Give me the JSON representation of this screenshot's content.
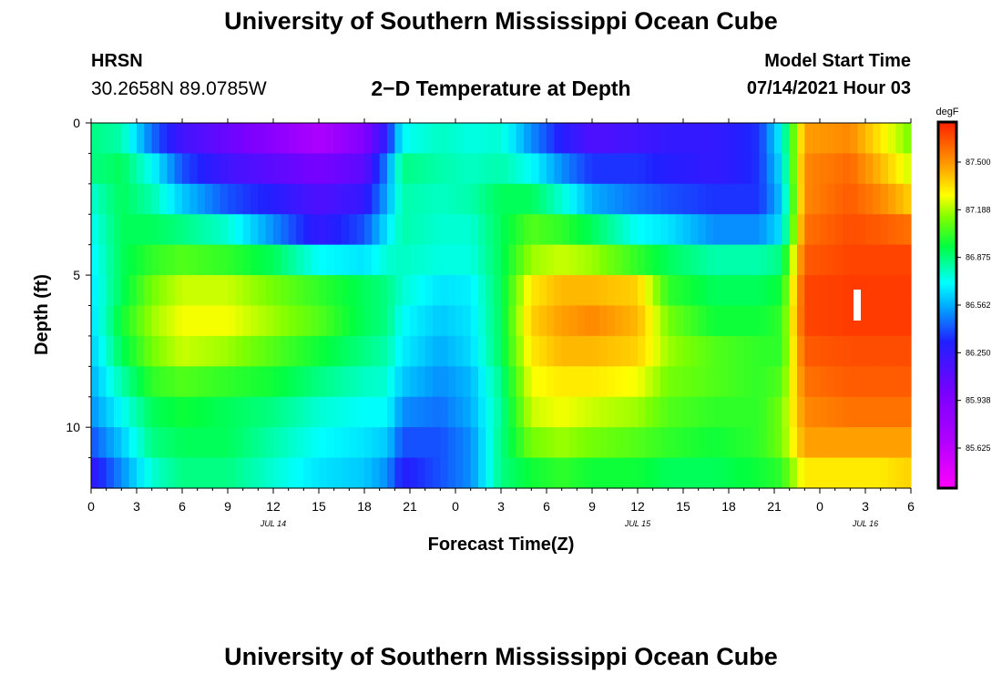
{
  "page": {
    "title": "University of Southern Mississippi Ocean Cube",
    "footer_title": "University of Southern Mississippi Ocean Cube",
    "station": "HRSN",
    "coordinates": "30.2658N  89.0785W",
    "subtitle": "2−D Temperature at Depth",
    "model_start_label": "Model Start Time",
    "model_start_value": "07/14/2021 Hour 03"
  },
  "chart_data": {
    "type": "heatmap",
    "title": "2−D Temperature at Depth",
    "xlabel": "Forecast Time(Z)",
    "ylabel": "Depth (ft)",
    "x_hours_start": 0,
    "x_hours_end": 54,
    "ylim": [
      0,
      12
    ],
    "x_ticks": [
      {
        "h": 0,
        "label": "0"
      },
      {
        "h": 3,
        "label": "3"
      },
      {
        "h": 6,
        "label": "6"
      },
      {
        "h": 9,
        "label": "9"
      },
      {
        "h": 12,
        "label": "12"
      },
      {
        "h": 15,
        "label": "15"
      },
      {
        "h": 18,
        "label": "18"
      },
      {
        "h": 21,
        "label": "21"
      },
      {
        "h": 24,
        "label": "0"
      },
      {
        "h": 27,
        "label": "3"
      },
      {
        "h": 30,
        "label": "6"
      },
      {
        "h": 33,
        "label": "9"
      },
      {
        "h": 36,
        "label": "12"
      },
      {
        "h": 39,
        "label": "15"
      },
      {
        "h": 42,
        "label": "18"
      },
      {
        "h": 45,
        "label": "21"
      },
      {
        "h": 48,
        "label": "0"
      },
      {
        "h": 51,
        "label": "3"
      },
      {
        "h": 54,
        "label": "6"
      }
    ],
    "date_labels": [
      {
        "h": 12,
        "label": "JUL 14"
      },
      {
        "h": 36,
        "label": "JUL 15"
      },
      {
        "h": 51,
        "label": "JUL 16"
      }
    ],
    "y_ticks": [
      {
        "d": 0,
        "label": "0"
      },
      {
        "d": 5,
        "label": "5"
      },
      {
        "d": 10,
        "label": "10"
      }
    ],
    "colorbar": {
      "unit": "degF",
      "min": 85.43,
      "max": 87.78,
      "ticks": [
        "87.500",
        "87.188",
        "86.875",
        "86.562",
        "86.250",
        "85.938",
        "85.625"
      ]
    },
    "depth_bins": [
      0.5,
      1.5,
      2.5,
      3.5,
      4.5,
      5.5,
      6.5,
      7.5,
      8.5,
      9.5,
      10.5,
      11.5
    ],
    "keyframes": [
      {
        "h": 0,
        "values": [
          86.9,
          86.9,
          86.8,
          86.75,
          86.72,
          86.7,
          86.68,
          86.65,
          86.6,
          86.55,
          86.45,
          86.3
        ]
      },
      {
        "h": 2,
        "values": [
          86.85,
          86.95,
          86.95,
          86.95,
          86.95,
          86.95,
          87.0,
          86.95,
          86.85,
          86.75,
          86.65,
          86.55
        ]
      },
      {
        "h": 4,
        "values": [
          86.5,
          86.75,
          86.85,
          86.95,
          87.05,
          87.15,
          87.2,
          87.15,
          87.05,
          86.95,
          86.9,
          86.8
        ]
      },
      {
        "h": 6,
        "values": [
          86.25,
          86.45,
          86.65,
          86.9,
          87.1,
          87.25,
          87.3,
          87.25,
          87.1,
          87.0,
          86.95,
          86.9
        ]
      },
      {
        "h": 9,
        "values": [
          86.1,
          86.25,
          86.45,
          86.8,
          87.05,
          87.25,
          87.3,
          87.2,
          87.05,
          86.95,
          86.95,
          86.9
        ]
      },
      {
        "h": 12,
        "values": [
          85.95,
          86.15,
          86.35,
          86.55,
          86.95,
          87.15,
          87.2,
          87.1,
          87.0,
          86.9,
          86.85,
          86.8
        ]
      },
      {
        "h": 15,
        "values": [
          85.75,
          86.05,
          86.2,
          86.3,
          86.75,
          87.05,
          87.1,
          87.0,
          86.9,
          86.8,
          86.75,
          86.7
        ]
      },
      {
        "h": 18,
        "values": [
          86.0,
          86.15,
          86.3,
          86.45,
          86.7,
          86.95,
          86.95,
          86.9,
          86.82,
          86.75,
          86.7,
          86.65
        ]
      },
      {
        "h": 19.5,
        "values": [
          86.35,
          86.55,
          86.6,
          86.7,
          86.8,
          86.9,
          86.9,
          86.85,
          86.8,
          86.75,
          86.65,
          86.55
        ]
      },
      {
        "h": 20.5,
        "values": [
          86.75,
          86.9,
          86.85,
          86.85,
          86.82,
          86.8,
          86.75,
          86.72,
          86.65,
          86.55,
          86.45,
          86.35
        ]
      },
      {
        "h": 23,
        "values": [
          86.82,
          86.85,
          86.82,
          86.8,
          86.78,
          86.7,
          86.65,
          86.6,
          86.55,
          86.5,
          86.45,
          86.45
        ]
      },
      {
        "h": 25,
        "values": [
          86.78,
          86.82,
          86.85,
          86.8,
          86.78,
          86.72,
          86.7,
          86.68,
          86.62,
          86.6,
          86.55,
          86.55
        ]
      },
      {
        "h": 27,
        "values": [
          86.8,
          86.85,
          86.95,
          86.95,
          86.95,
          86.95,
          86.95,
          86.95,
          86.9,
          86.88,
          86.9,
          86.9
        ]
      },
      {
        "h": 29,
        "values": [
          86.55,
          86.75,
          86.95,
          87.1,
          87.2,
          87.35,
          87.4,
          87.35,
          87.3,
          87.25,
          87.15,
          87.0
        ]
      },
      {
        "h": 31,
        "values": [
          86.35,
          86.55,
          86.8,
          87.05,
          87.25,
          87.45,
          87.5,
          87.45,
          87.35,
          87.3,
          87.2,
          87.05
        ]
      },
      {
        "h": 33,
        "values": [
          86.2,
          86.4,
          86.6,
          86.95,
          87.2,
          87.45,
          87.55,
          87.45,
          87.35,
          87.25,
          87.15,
          87.0
        ]
      },
      {
        "h": 36,
        "values": [
          86.25,
          86.4,
          86.5,
          86.75,
          87.05,
          87.4,
          87.45,
          87.4,
          87.3,
          87.2,
          87.1,
          87.0
        ]
      },
      {
        "h": 38,
        "values": [
          86.3,
          86.35,
          86.45,
          86.7,
          86.95,
          87.05,
          87.15,
          87.2,
          87.15,
          87.1,
          87.05,
          86.95
        ]
      },
      {
        "h": 41,
        "values": [
          86.3,
          86.3,
          86.4,
          86.55,
          86.85,
          86.95,
          87.0,
          87.1,
          87.1,
          87.05,
          87.0,
          86.95
        ]
      },
      {
        "h": 44,
        "values": [
          86.4,
          86.4,
          86.4,
          86.55,
          86.85,
          86.95,
          87.0,
          87.05,
          87.05,
          87.05,
          87.05,
          87.0
        ]
      },
      {
        "h": 45.5,
        "values": [
          86.75,
          86.7,
          86.65,
          86.7,
          86.9,
          87.0,
          87.05,
          87.05,
          87.1,
          87.15,
          87.15,
          87.05
        ]
      },
      {
        "h": 47,
        "values": [
          87.5,
          87.55,
          87.55,
          87.6,
          87.65,
          87.7,
          87.7,
          87.65,
          87.6,
          87.55,
          87.5,
          87.35
        ]
      },
      {
        "h": 50,
        "values": [
          87.55,
          87.62,
          87.65,
          87.68,
          87.7,
          87.72,
          87.72,
          87.68,
          87.65,
          87.6,
          87.5,
          87.35
        ]
      },
      {
        "h": 52,
        "values": [
          87.35,
          87.45,
          87.55,
          87.65,
          87.7,
          87.72,
          87.72,
          87.68,
          87.65,
          87.6,
          87.5,
          87.35
        ]
      },
      {
        "h": 54,
        "values": [
          87.15,
          87.25,
          87.4,
          87.6,
          87.7,
          87.72,
          87.72,
          87.68,
          87.65,
          87.6,
          87.5,
          87.4
        ]
      }
    ]
  }
}
